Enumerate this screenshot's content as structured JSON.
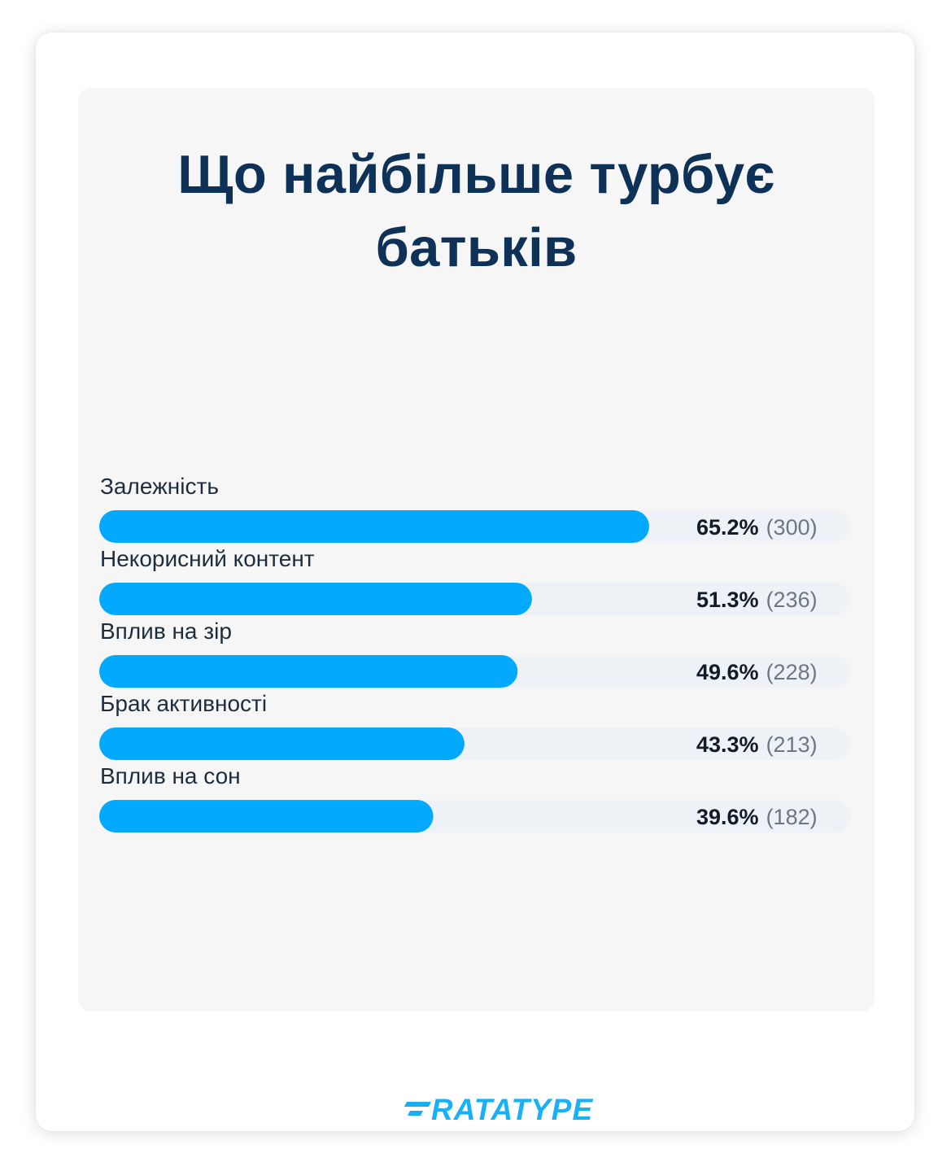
{
  "title": "Що найбільше турбує батьків",
  "brand": {
    "logo_text": "RATATYPE",
    "color": "#19b0f5"
  },
  "colors": {
    "bar": "#03a9fd",
    "track": "#eef1f6",
    "title": "#0d3157"
  },
  "chart_data": {
    "type": "bar",
    "orientation": "horizontal",
    "title": "Що найбільше турбує батьків",
    "xlim": [
      0,
      100
    ],
    "grid": false,
    "categories": [
      "Залежність",
      "Некорисний контент",
      "Вплив на зір",
      "Брак активності",
      "Вплив на сон"
    ],
    "values": [
      65.2,
      51.3,
      49.6,
      43.3,
      39.6
    ],
    "value_labels": [
      "65.2%",
      "51.3%",
      "49.6%",
      "43.3%",
      "39.6%"
    ],
    "counts": [
      300,
      236,
      228,
      213,
      182
    ],
    "count_labels": [
      "(300)",
      "(236)",
      "(228)",
      "(213)",
      "(182)"
    ]
  }
}
